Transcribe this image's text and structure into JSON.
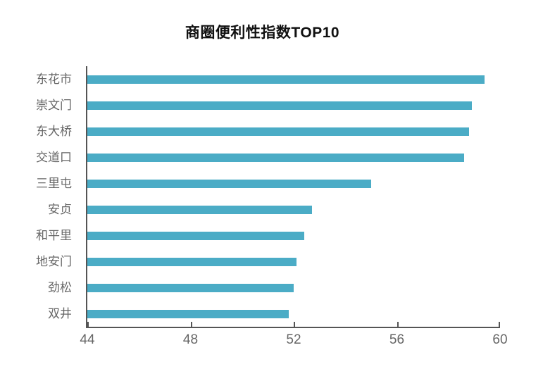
{
  "chart_data": {
    "type": "bar",
    "orientation": "horizontal",
    "title": "商圈便利性指数TOP10",
    "categories": [
      "东花市",
      "崇文门",
      "东大桥",
      "交道口",
      "三里屯",
      "安贞",
      "和平里",
      "地安门",
      "劲松",
      "双井"
    ],
    "values": [
      59.4,
      58.9,
      58.8,
      58.6,
      55.0,
      52.7,
      52.4,
      52.1,
      52.0,
      51.8
    ],
    "xlabel": "",
    "ylabel": "",
    "xlim": [
      44,
      60
    ],
    "xticks": [
      44,
      48,
      52,
      56,
      60
    ],
    "grid": false,
    "legend": "none",
    "bar_color": "#4BACC6",
    "axis_color": "#555555",
    "tick_label_color": "#666666",
    "title_color": "#111111",
    "background_color": "#ffffff"
  }
}
